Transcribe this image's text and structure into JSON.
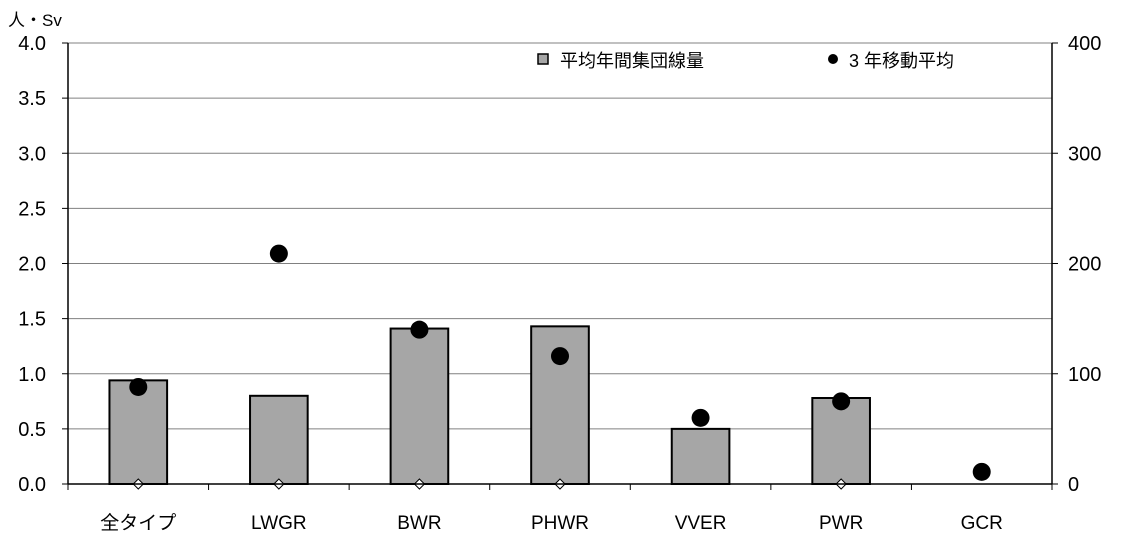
{
  "chart_data": {
    "type": "bar",
    "ylabel": "人・Sv",
    "categories": [
      "全タイプ",
      "LWGR",
      "BWR",
      "PHWR",
      "VVER",
      "PWR",
      "GCR"
    ],
    "y_left": {
      "range": [
        0,
        4.0
      ],
      "ticks": [
        "0.0",
        "0.5",
        "1.0",
        "1.5",
        "2.0",
        "2.5",
        "3.0",
        "3.5",
        "4.0"
      ]
    },
    "y_right": {
      "range": [
        0,
        400
      ],
      "ticks": [
        "0",
        "100",
        "200",
        "300",
        "400"
      ]
    },
    "grid": true,
    "legend_position": "top-right",
    "series": [
      {
        "name": "平均年間集団線量",
        "kind": "bar",
        "axis": "left",
        "values": [
          0.94,
          0.8,
          1.41,
          1.43,
          0.5,
          0.78,
          null
        ]
      },
      {
        "name": "3 年移動平均",
        "kind": "scatter",
        "axis": "left",
        "values": [
          0.88,
          2.09,
          1.4,
          1.16,
          0.6,
          0.75,
          0.11
        ]
      }
    ],
    "marker_values": [
      0,
      0,
      0,
      0,
      null,
      0,
      null
    ],
    "colors": {
      "bar_fill": "#a6a6a6",
      "bar_stroke": "#000000",
      "dot": "#000000",
      "grid": "#808080"
    }
  }
}
